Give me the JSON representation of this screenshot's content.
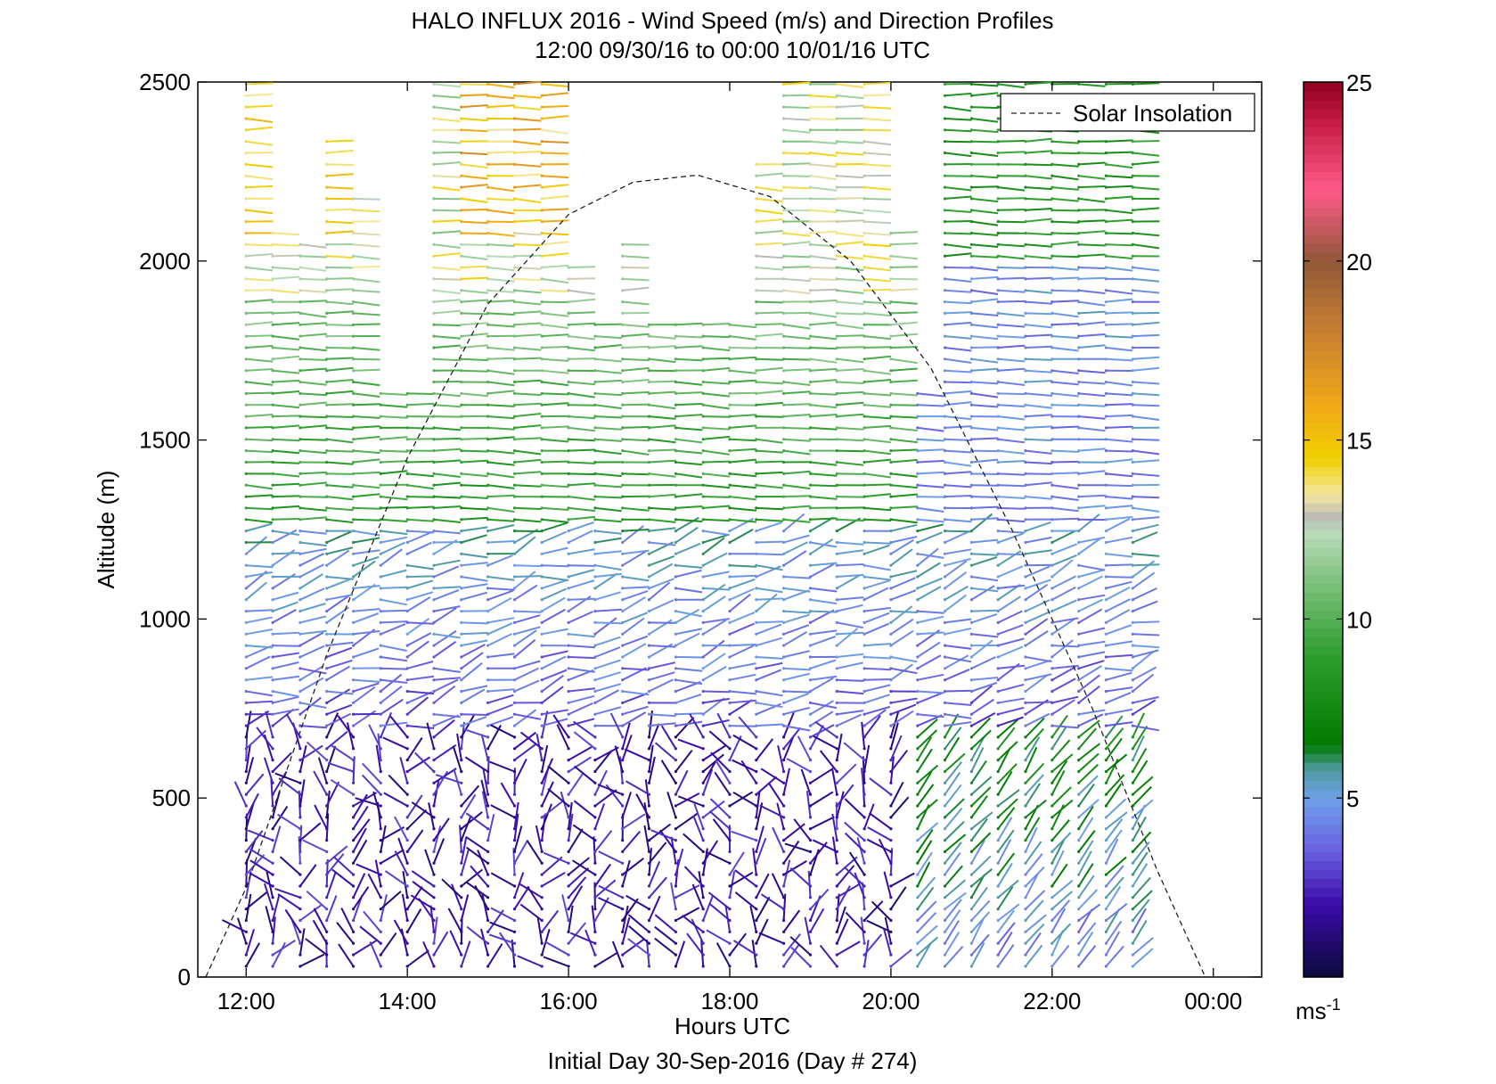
{
  "chart_data": {
    "type": "wind barb profile (time-height)",
    "title": "HALO INFLUX 2016 - Wind Speed (m/s) and Direction Profiles",
    "subtitle": "12:00 09/30/16 to 00:00 10/01/16  UTC",
    "xlabel": "Hours UTC",
    "footer": "Initial Day 30-Sep-2016 (Day # 274)",
    "ylabel": "Altitude (m)",
    "x_tick_labels": [
      "12:00",
      "14:00",
      "16:00",
      "18:00",
      "20:00",
      "22:00",
      "00:00"
    ],
    "x_tick_hours": [
      12,
      14,
      16,
      18,
      20,
      22,
      24
    ],
    "xlim_hours": [
      11.4,
      24.6
    ],
    "y_ticks": [
      0,
      500,
      1000,
      1500,
      2000,
      2500
    ],
    "ylim": [
      0,
      2500
    ],
    "legend": {
      "label": "Solar Insolation",
      "position": "top-right"
    },
    "solar_insolation_curve": {
      "style": "dashed",
      "points_hours_altitude": [
        [
          11.5,
          0
        ],
        [
          12.0,
          250
        ],
        [
          13.0,
          900
        ],
        [
          14.0,
          1450
        ],
        [
          15.0,
          1880
        ],
        [
          16.0,
          2130
        ],
        [
          16.8,
          2220
        ],
        [
          17.6,
          2240
        ],
        [
          18.5,
          2180
        ],
        [
          19.5,
          2000
        ],
        [
          20.5,
          1700
        ],
        [
          21.5,
          1250
        ],
        [
          22.5,
          750
        ],
        [
          23.3,
          300
        ],
        [
          23.9,
          0
        ]
      ]
    },
    "colorbar": {
      "ticks": [
        5,
        10,
        15,
        20,
        25
      ],
      "range": [
        0,
        25
      ],
      "unit": "ms",
      "unit_exponent": "-1",
      "colormap": [
        [
          0,
          "#0a0a3a"
        ],
        [
          2,
          "#3a0aa8"
        ],
        [
          3.5,
          "#6a5fe0"
        ],
        [
          5,
          "#6fa0ea"
        ],
        [
          5.8,
          "#4f9aa0"
        ],
        [
          6.5,
          "#007a00"
        ],
        [
          9,
          "#2e9e2e"
        ],
        [
          11,
          "#7cc07c"
        ],
        [
          12.5,
          "#bcdcbc"
        ],
        [
          12.8,
          "#b8b8b8"
        ],
        [
          13.5,
          "#f4e8a0"
        ],
        [
          14.5,
          "#f0d000"
        ],
        [
          16,
          "#f0a818"
        ],
        [
          18,
          "#c88030"
        ],
        [
          20,
          "#905838"
        ],
        [
          22,
          "#ff5a8a"
        ],
        [
          24,
          "#c01840"
        ],
        [
          25,
          "#900020"
        ]
      ]
    },
    "wind_profiles": {
      "note": "Approximate reconstruction of the vector field: profile times in hours UTC, altitude bins in m, speed in m/s, direction as screen angle of the vector",
      "profile_start_hours": [
        12.0,
        12.33,
        12.67,
        13.0,
        13.33,
        13.67,
        14.0,
        14.33,
        14.67,
        15.0,
        15.33,
        15.67,
        16.0,
        16.33,
        16.67,
        17.0,
        17.33,
        17.67,
        18.0,
        18.33,
        18.67,
        19.0,
        19.33,
        19.67,
        20.0,
        20.33,
        20.67,
        21.0,
        21.33,
        21.67,
        22.0,
        22.33,
        22.67,
        23.0
      ],
      "altitude_top_m": [
        2500,
        2100,
        2050,
        2350,
        2200,
        1650,
        1630,
        2500,
        2500,
        2500,
        2500,
        2500,
        2000,
        1850,
        2050,
        1850,
        1850,
        1850,
        1850,
        2300,
        2500,
        2500,
        2500,
        2500,
        2100,
        1650,
        2500,
        2500,
        2500,
        2500,
        2500,
        2500,
        2500,
        2500
      ],
      "altitude_bin_m": 32
    }
  }
}
